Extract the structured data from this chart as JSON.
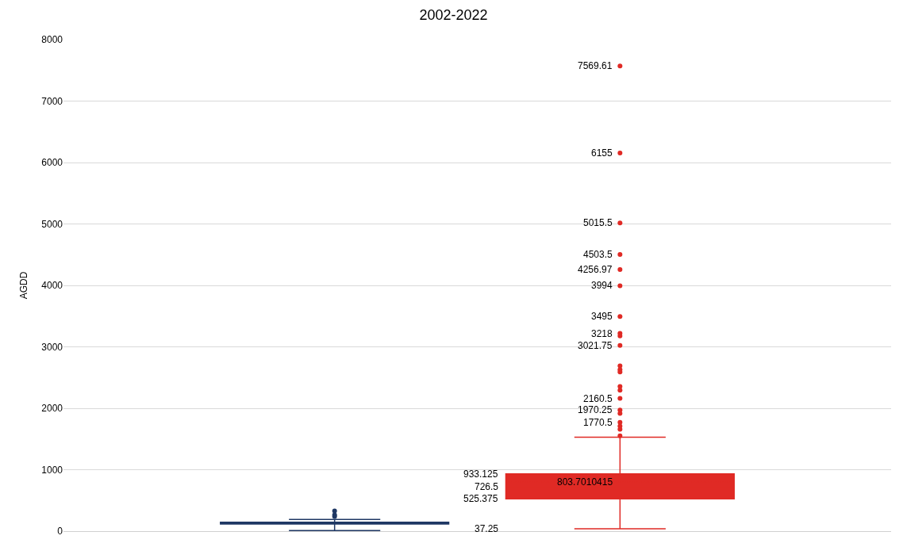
{
  "chart_data": {
    "type": "box",
    "title": "2002-2022",
    "ylabel": "AGDD",
    "categories": [
      null,
      null
    ],
    "colors": [
      "#1f3864",
      "#e02a25"
    ],
    "boxes": [
      {
        "low": 11,
        "q1": 115,
        "median": 130,
        "q3": 145,
        "high": 189,
        "mean": 129.4,
        "outliers": [
          329,
          265,
          240
        ]
      },
      {
        "low": 37.25,
        "q1": 525.375,
        "median": 726.5,
        "q3": 933.125,
        "high": 1530,
        "mean": 803.7010415,
        "outliers": [
          7569.61,
          6155,
          5015.5,
          4503.5,
          4256.97,
          3994,
          3495,
          3218,
          3177.5,
          3021.75,
          2689,
          2630,
          2590.25,
          2356,
          2292.25,
          2160.5,
          1970.25,
          1917,
          1770.5,
          1709,
          1658,
          1551.75
        ]
      }
    ],
    "annotations": [
      "7569.61",
      "6155",
      "5015.5",
      "4503.5",
      "4256.97",
      "3994",
      "3495",
      "3218",
      "3021.75",
      "2160.5",
      "1970.25",
      "1770.5",
      "933.125",
      "726.5",
      "525.375",
      "803.7010415",
      "37.25"
    ],
    "ylim": [
      0,
      8000
    ],
    "yticks": [
      0,
      1000,
      2000,
      3000,
      4000,
      5000,
      6000,
      7000,
      8000
    ],
    "grid": "y",
    "marker": "circle"
  }
}
